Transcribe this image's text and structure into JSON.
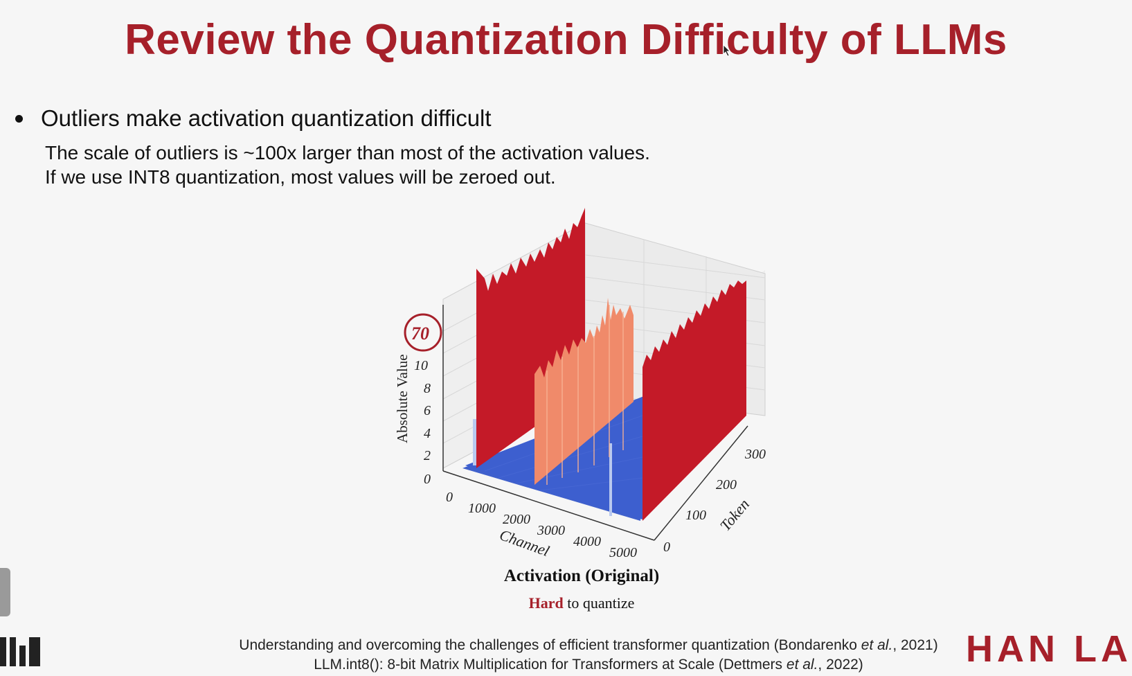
{
  "slide": {
    "title": "Review the Quantization Difficulty of LLMs",
    "bullet": "Outliers make activation quantization difficult",
    "sub_lines": [
      "The scale of outliers is ~100x larger than most of the activation values.",
      "If we use INT8 quantization, most values will be zeroed out."
    ],
    "chart_caption": "Activation (Original)",
    "caption_hard": "Hard",
    "caption_rest": " to quantize",
    "references": [
      {
        "pre": "Understanding and overcoming the challenges of efficient transformer quantization (Bondarenko ",
        "etal": "et al.",
        "post": ", 2021)"
      },
      {
        "pre": "LLM.int8(): 8-bit Matrix Multiplication for Transformers at Scale (Dettmers ",
        "etal": "et al.",
        "post": ", 2022)"
      }
    ],
    "logo_right": "HAN LA"
  },
  "chart_data": {
    "type": "surface3d",
    "title": "Activation (Original)",
    "zlabel": "Absolute Value",
    "xlabel": "Channel",
    "ylabel": "Token",
    "z_ticks": [
      "0",
      "2",
      "4",
      "6",
      "8",
      "10"
    ],
    "z_outlier_tick": "70",
    "x_ticks": [
      "0",
      "1000",
      "2000",
      "3000",
      "4000",
      "5000"
    ],
    "y_ticks": [
      "0",
      "100",
      "200",
      "300"
    ],
    "outlier_channels_approx": [
      300,
      2100,
      5000
    ],
    "outlier_level": 70,
    "typical_level": 0.5,
    "colors": {
      "outlier": "#c41a28",
      "medium": "#f08a6a",
      "low": "#3557c9",
      "spike": "#b9c9ef"
    }
  },
  "colors": {
    "title": "#a6202a",
    "accent": "#a6202a"
  }
}
